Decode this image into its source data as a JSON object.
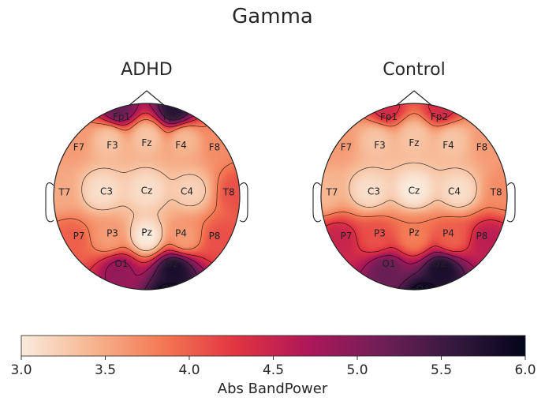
{
  "chart_data": {
    "type": "topomap",
    "title": "Gamma",
    "panels": [
      {
        "name": "ADHD",
        "channels": [
          {
            "label": "Fp1",
            "x": -0.3,
            "y": 0.95,
            "value": 5.2
          },
          {
            "label": "Fp2",
            "x": 0.3,
            "y": 0.95,
            "value": 5.7
          },
          {
            "label": "F7",
            "x": -0.81,
            "y": 0.59,
            "value": 3.6
          },
          {
            "label": "F3",
            "x": -0.41,
            "y": 0.61,
            "value": 3.3
          },
          {
            "label": "Fz",
            "x": 0.0,
            "y": 0.64,
            "value": 3.3
          },
          {
            "label": "F4",
            "x": 0.41,
            "y": 0.61,
            "value": 3.4
          },
          {
            "label": "F8",
            "x": 0.81,
            "y": 0.59,
            "value": 3.7
          },
          {
            "label": "T7",
            "x": -0.98,
            "y": 0.05,
            "value": 3.5
          },
          {
            "label": "C3",
            "x": -0.48,
            "y": 0.06,
            "value": 3.1
          },
          {
            "label": "Cz",
            "x": 0.0,
            "y": 0.07,
            "value": 3.1
          },
          {
            "label": "C4",
            "x": 0.48,
            "y": 0.06,
            "value": 3.2
          },
          {
            "label": "T8",
            "x": 0.98,
            "y": 0.05,
            "value": 4.1
          },
          {
            "label": "P7",
            "x": -0.81,
            "y": -0.47,
            "value": 4.0
          },
          {
            "label": "P3",
            "x": -0.41,
            "y": -0.44,
            "value": 3.6
          },
          {
            "label": "Pz",
            "x": 0.0,
            "y": -0.43,
            "value": 3.0
          },
          {
            "label": "P4",
            "x": 0.41,
            "y": -0.44,
            "value": 3.6
          },
          {
            "label": "P8",
            "x": 0.81,
            "y": -0.47,
            "value": 4.1
          },
          {
            "label": "O1",
            "x": -0.3,
            "y": -0.8,
            "value": 4.9
          },
          {
            "label": "O2",
            "x": 0.3,
            "y": -0.8,
            "value": 5.8
          },
          {
            "label": "Oz",
            "x": 0.25,
            "y": -1.1,
            "value": 6.0
          }
        ]
      },
      {
        "name": "Control",
        "channels": [
          {
            "label": "Fp1",
            "x": -0.3,
            "y": 0.95,
            "value": 4.4
          },
          {
            "label": "Fp2",
            "x": 0.3,
            "y": 0.95,
            "value": 4.4
          },
          {
            "label": "F7",
            "x": -0.81,
            "y": 0.59,
            "value": 3.6
          },
          {
            "label": "F3",
            "x": -0.41,
            "y": 0.61,
            "value": 3.3
          },
          {
            "label": "Fz",
            "x": 0.0,
            "y": 0.64,
            "value": 3.3
          },
          {
            "label": "F4",
            "x": 0.41,
            "y": 0.61,
            "value": 3.3
          },
          {
            "label": "F8",
            "x": 0.81,
            "y": 0.59,
            "value": 3.6
          },
          {
            "label": "T7",
            "x": -0.98,
            "y": 0.05,
            "value": 3.4
          },
          {
            "label": "C3",
            "x": -0.48,
            "y": 0.06,
            "value": 3.1
          },
          {
            "label": "Cz",
            "x": 0.0,
            "y": 0.07,
            "value": 3.0
          },
          {
            "label": "C4",
            "x": 0.48,
            "y": 0.06,
            "value": 3.1
          },
          {
            "label": "T8",
            "x": 0.98,
            "y": 0.05,
            "value": 3.7
          },
          {
            "label": "P7",
            "x": -0.81,
            "y": -0.47,
            "value": 4.5
          },
          {
            "label": "P3",
            "x": -0.41,
            "y": -0.44,
            "value": 4.1
          },
          {
            "label": "Pz",
            "x": 0.0,
            "y": -0.43,
            "value": 3.8
          },
          {
            "label": "P4",
            "x": 0.41,
            "y": -0.44,
            "value": 4.0
          },
          {
            "label": "P8",
            "x": 0.81,
            "y": -0.47,
            "value": 4.6
          },
          {
            "label": "O1",
            "x": -0.3,
            "y": -0.8,
            "value": 5.2
          },
          {
            "label": "O2",
            "x": 0.3,
            "y": -0.8,
            "value": 5.8
          },
          {
            "label": "Oz",
            "x": 0.1,
            "y": -1.1,
            "value": 6.0
          }
        ]
      }
    ],
    "colorbar": {
      "label": "Abs BandPower",
      "range": [
        3.0,
        6.0
      ],
      "ticks": [
        "3.0",
        "3.5",
        "4.0",
        "4.5",
        "5.0",
        "5.5",
        "6.0"
      ],
      "colormap": "rocket_r",
      "stops": [
        "#faebdd",
        "#f6b48e",
        "#f37651",
        "#e13342",
        "#ad1759",
        "#701f57",
        "#35193e",
        "#03051a"
      ]
    },
    "contour_levels": [
      3.3,
      3.8,
      4.3,
      4.8,
      5.3,
      5.8
    ],
    "show_sensor_markers": false
  }
}
